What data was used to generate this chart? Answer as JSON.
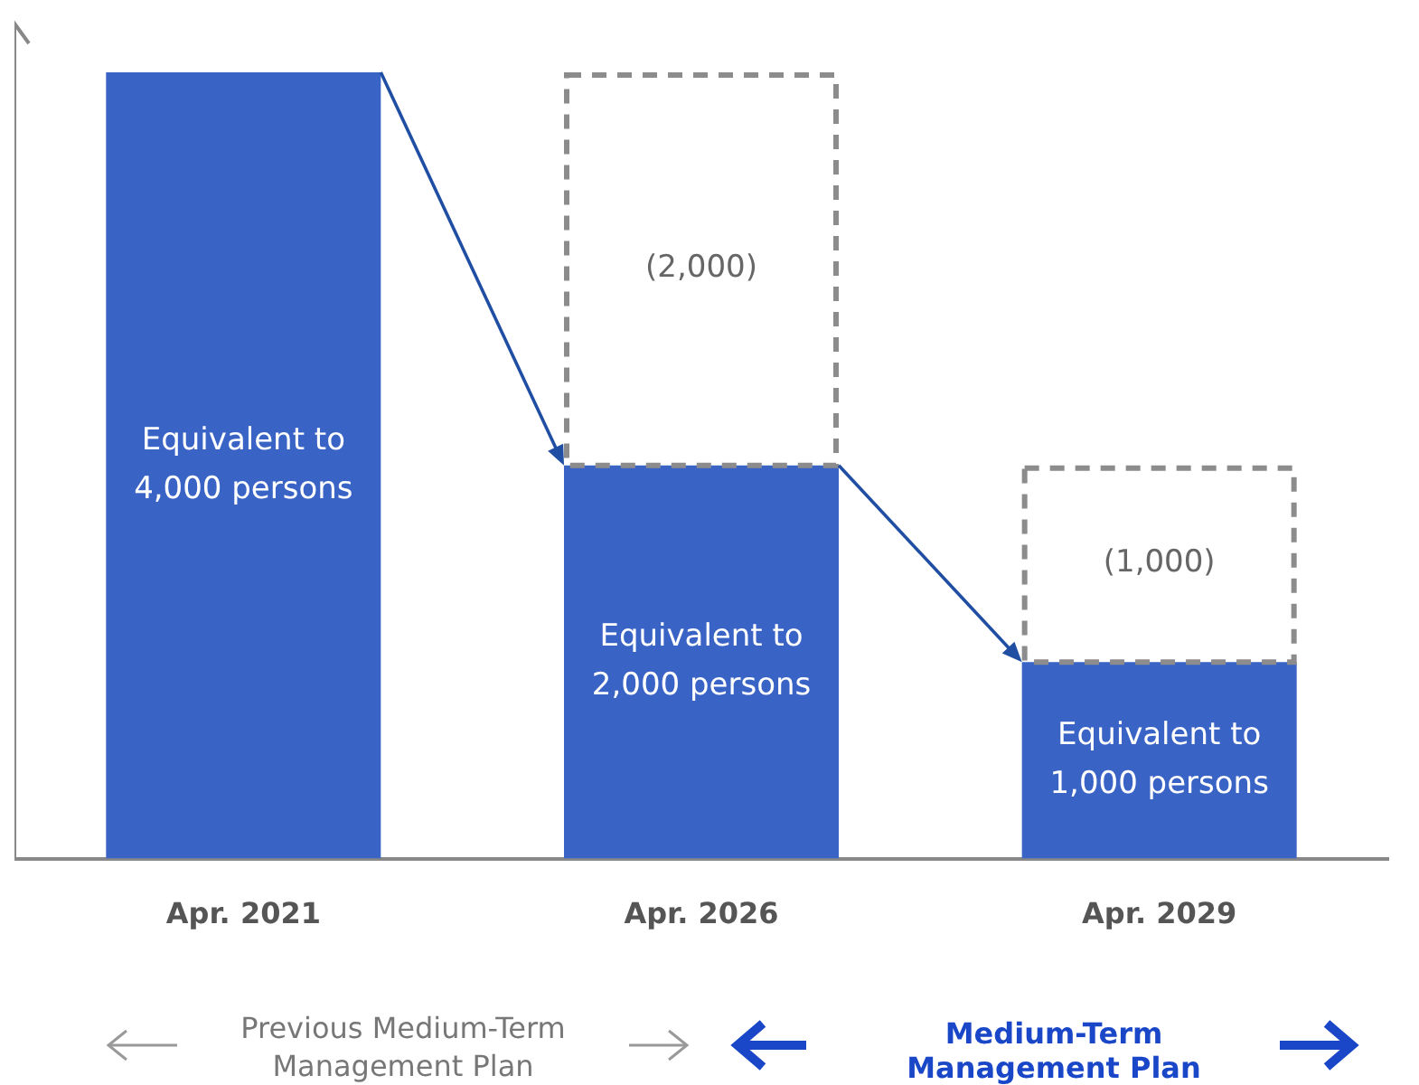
{
  "chart_data": {
    "type": "bar",
    "categories": [
      "Apr. 2021",
      "Apr. 2026",
      "Apr. 2029"
    ],
    "stacked": true,
    "grid": false,
    "legend": false,
    "tick_labels": "x",
    "series": [
      {
        "color": "#3a63c6",
        "values": [
          4000,
          2000,
          1000
        ],
        "value_labels": [
          "Equivalent to 4,000 persons",
          "Equivalent to 2,000 persons",
          "Equivalent to 1,000 persons"
        ]
      },
      {
        "color": "#8c8c8c",
        "line_style": "dashed",
        "values": [
          null,
          2000,
          1000
        ],
        "value_labels": [
          null,
          "(2,000)",
          "(1,000)"
        ]
      }
    ],
    "annotations": [
      "Previous Medium-Term Management Plan",
      "Medium-Term Management Plan"
    ]
  }
}
